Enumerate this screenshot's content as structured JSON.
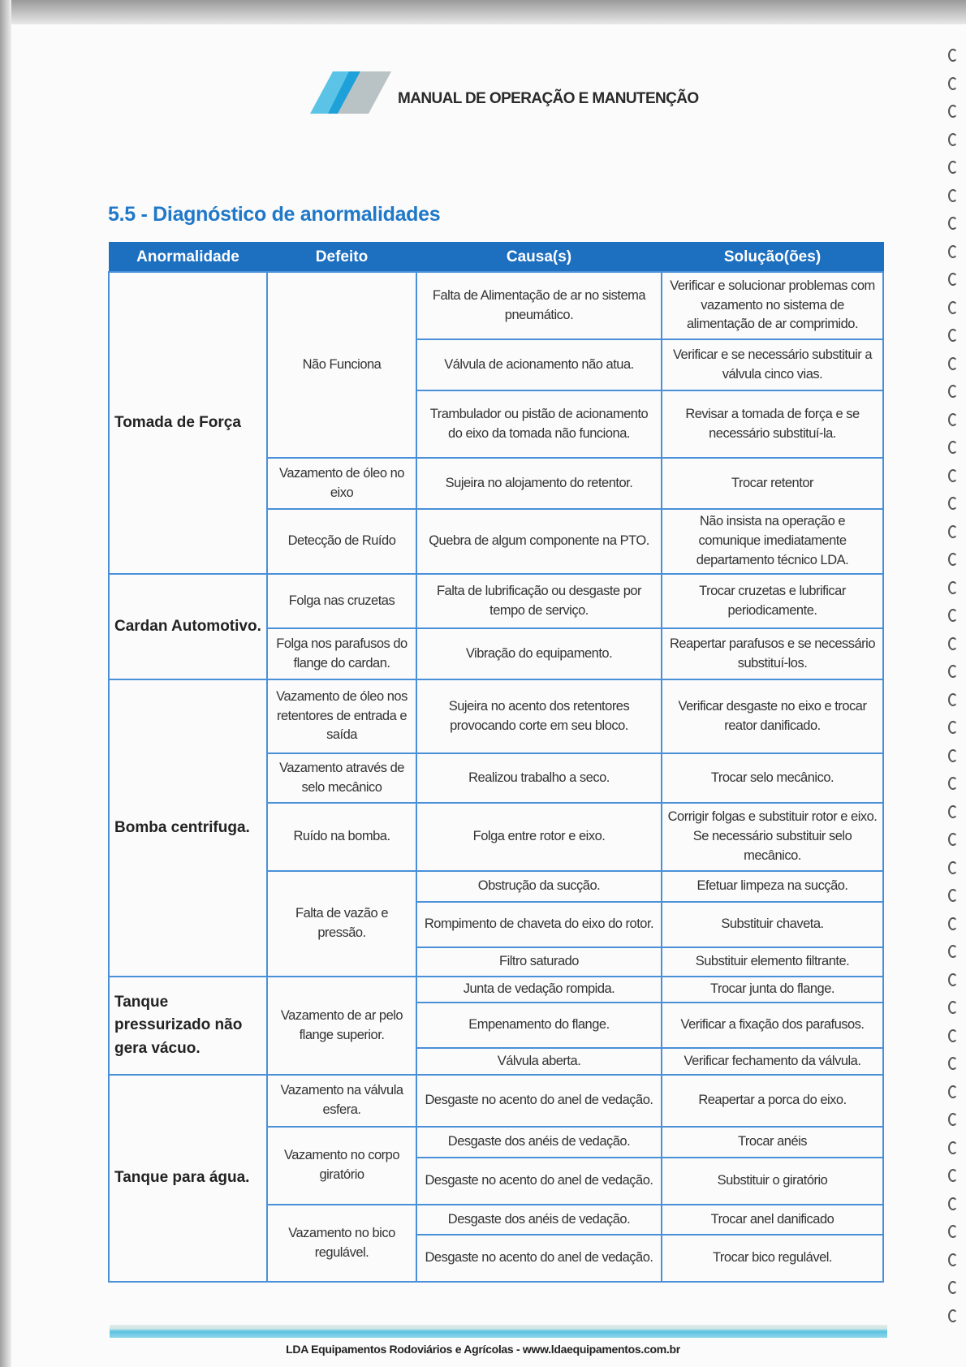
{
  "header": {
    "title": "MANUAL DE OPERAÇÃO E MANUTENÇÃO",
    "logo_colors": [
      "#5bc4e6",
      "#1ea0d8",
      "#b9c2c4"
    ]
  },
  "section_title": "5.5 - Diagnóstico de anormalidades",
  "table": {
    "columns": [
      "Anormalidade",
      "Defeito",
      "Causa(s)",
      "Solução(ões)"
    ],
    "groups": [
      {
        "anomaly": "Tomada de Força",
        "defects": [
          {
            "defect": "Não Funciona",
            "causes": [
              {
                "cause": "Falta de Alimentação de ar no sistema pneumático.",
                "solution": "Verificar e solucionar problemas com vazamento no sistema de alimentação de ar comprimido."
              },
              {
                "cause": "Válvula de acionamento não atua.",
                "solution": "Verificar e se necessário substituir a válvula cinco vias."
              },
              {
                "cause": "Trambulador ou pistão de acionamento do eixo da tomada não funciona.",
                "solution": "Revisar a tomada de força e se necessário substituí-la."
              }
            ]
          },
          {
            "defect": "Vazamento de óleo no eixo",
            "causes": [
              {
                "cause": "Sujeira no alojamento do retentor.",
                "solution": "Trocar retentor"
              }
            ]
          },
          {
            "defect": "Detecção de Ruído",
            "causes": [
              {
                "cause": "Quebra de algum componente na PTO.",
                "solution": "Não insista na operação e comunique imediatamente departamento técnico LDA."
              }
            ]
          }
        ]
      },
      {
        "anomaly": "Cardan Automotivo.",
        "defects": [
          {
            "defect": "Folga nas cruzetas",
            "causes": [
              {
                "cause": "Falta de lubrificação ou desgaste por tempo de serviço.",
                "solution": "Trocar cruzetas e lubrificar periodicamente."
              }
            ]
          },
          {
            "defect": "Folga nos parafusos do flange do cardan.",
            "causes": [
              {
                "cause": "Vibração do equipamento.",
                "solution": "Reapertar parafusos e se necessário substituí-los."
              }
            ]
          }
        ]
      },
      {
        "anomaly": "Bomba centrifuga.",
        "defects": [
          {
            "defect": "Vazamento de óleo nos retentores de entrada e saída",
            "causes": [
              {
                "cause": "Sujeira no acento dos retentores provocando corte em seu bloco.",
                "solution": "Verificar desgaste no eixo e trocar reator danificado."
              }
            ]
          },
          {
            "defect": "Vazamento através de selo mecânico",
            "causes": [
              {
                "cause": "Realizou trabalho a seco.",
                "solution": "Trocar selo mecânico."
              }
            ]
          },
          {
            "defect": "Ruído na bomba.",
            "causes": [
              {
                "cause": "Folga entre rotor e eixo.",
                "solution": "Corrigir folgas e substituir rotor e eixo. Se necessário substituir selo mecânico."
              }
            ]
          },
          {
            "defect": "Falta de vazão e pressão.",
            "causes": [
              {
                "cause": "Obstrução da sucção.",
                "solution": "Efetuar limpeza na sucção."
              },
              {
                "cause": "Rompimento de chaveta do eixo do rotor.",
                "solution": "Substituir chaveta."
              },
              {
                "cause": "Filtro saturado",
                "solution": "Substituir elemento filtrante."
              }
            ]
          }
        ]
      },
      {
        "anomaly": "Tanque pressurizado não gera vácuo.",
        "defects": [
          {
            "defect": "Vazamento de ar pelo flange superior.",
            "causes": [
              {
                "cause": "Junta de vedação rompida.",
                "solution": "Trocar junta do flange."
              },
              {
                "cause": "Empenamento do flange.",
                "solution": "Verificar a fixação dos parafusos."
              },
              {
                "cause": "Válvula aberta.",
                "solution": "Verificar fechamento da válvula."
              }
            ]
          }
        ]
      },
      {
        "anomaly": "Tanque para água.",
        "defects": [
          {
            "defect": "Vazamento na válvula esfera.",
            "causes": [
              {
                "cause": "Desgaste no acento do anel de vedação.",
                "solution": "Reapertar a porca do eixo."
              }
            ]
          },
          {
            "defect": "Vazamento no corpo giratório",
            "causes": [
              {
                "cause": "Desgaste dos anéis de vedação.",
                "solution": "Trocar anéis"
              },
              {
                "cause": "Desgaste no acento do anel de vedação.",
                "solution": "Substituir o giratório"
              }
            ]
          },
          {
            "defect": "Vazamento no bico regulável.",
            "causes": [
              {
                "cause": "Desgaste dos anéis de vedação.",
                "solution": "Trocar anel danificado"
              },
              {
                "cause": "Desgaste no acento do anel de vedação.",
                "solution": "Trocar bico regulável."
              }
            ]
          }
        ]
      }
    ]
  },
  "footer": {
    "text": "LDA Equipamentos Rodoviários e Agrícolas - www.ldaequipamentos.com.br"
  }
}
